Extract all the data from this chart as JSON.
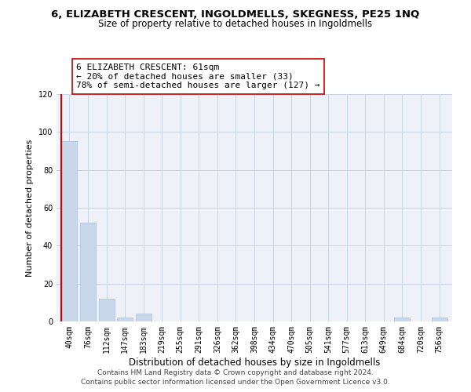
{
  "title": "6, ELIZABETH CRESCENT, INGOLDMELLS, SKEGNESS, PE25 1NQ",
  "subtitle": "Size of property relative to detached houses in Ingoldmells",
  "xlabel": "Distribution of detached houses by size in Ingoldmells",
  "ylabel": "Number of detached properties",
  "bar_labels": [
    "40sqm",
    "76sqm",
    "112sqm",
    "147sqm",
    "183sqm",
    "219sqm",
    "255sqm",
    "291sqm",
    "326sqm",
    "362sqm",
    "398sqm",
    "434sqm",
    "470sqm",
    "505sqm",
    "541sqm",
    "577sqm",
    "613sqm",
    "649sqm",
    "684sqm",
    "720sqm",
    "756sqm"
  ],
  "bar_values": [
    95,
    52,
    12,
    2,
    4,
    0,
    0,
    0,
    0,
    0,
    0,
    0,
    0,
    0,
    0,
    0,
    0,
    0,
    2,
    0,
    2
  ],
  "bar_color": "#c8d8ea",
  "bar_edge_color": "#a8c0db",
  "property_line_label": "6 ELIZABETH CRESCENT: 61sqm",
  "annotation_line1": "← 20% of detached houses are smaller (33)",
  "annotation_line2": "78% of semi-detached houses are larger (127) →",
  "annotation_box_color": "white",
  "annotation_box_edge_color": "#cc0000",
  "property_line_color": "#cc0000",
  "ylim": [
    0,
    120
  ],
  "yticks": [
    0,
    20,
    40,
    60,
    80,
    100,
    120
  ],
  "grid_color": "#c8d4e4",
  "bg_color": "#eef2f8",
  "footer_line1": "Contains HM Land Registry data © Crown copyright and database right 2024.",
  "footer_line2": "Contains public sector information licensed under the Open Government Licence v3.0.",
  "title_fontsize": 9.5,
  "subtitle_fontsize": 8.5,
  "xlabel_fontsize": 8.5,
  "ylabel_fontsize": 8,
  "annotation_fontsize": 8,
  "footer_fontsize": 6.5,
  "tick_fontsize": 7
}
